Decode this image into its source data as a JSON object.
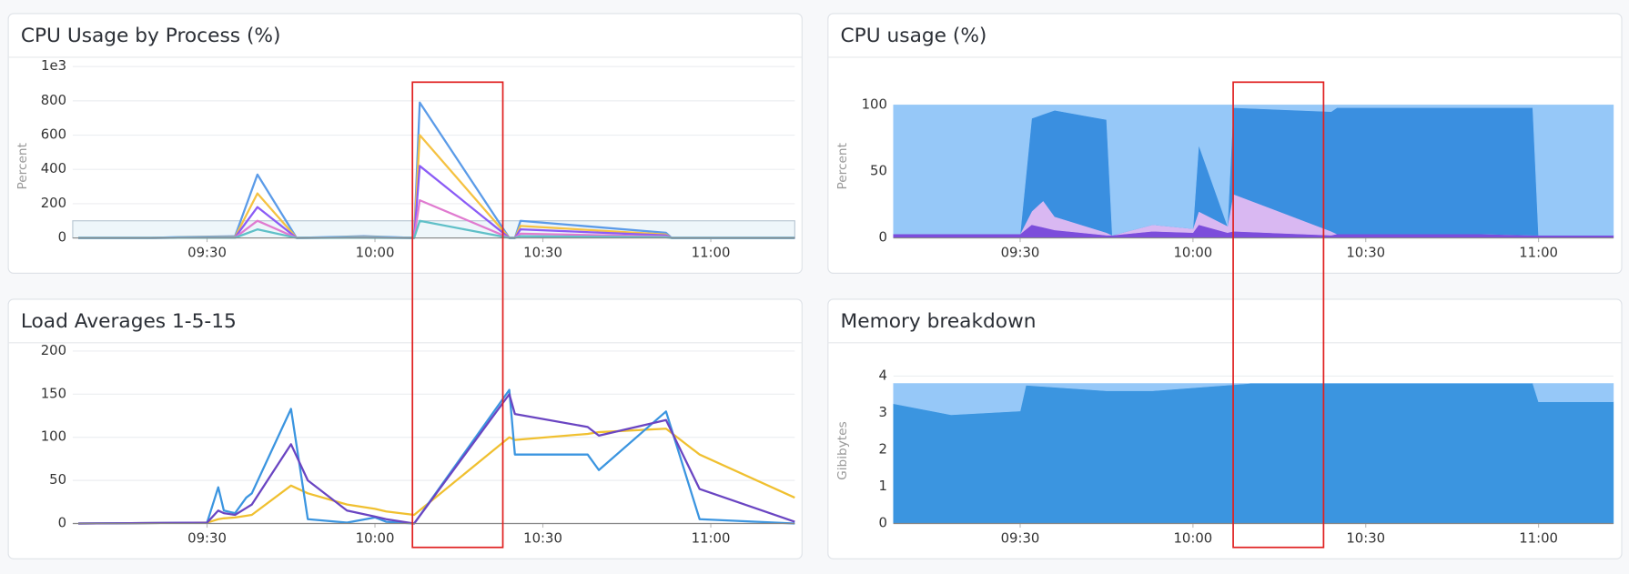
{
  "chart_data": [
    {
      "type": "line",
      "title": "CPU Usage by Process (%)",
      "y_label": "Percent",
      "xlim": [
        "09:06",
        "11:15"
      ],
      "xticks": [
        "09:30",
        "10:00",
        "10:30",
        "11:00"
      ],
      "ylim": [
        0,
        1000
      ],
      "yticks": [
        0,
        200,
        400,
        600,
        800,
        {
          "value": 1000,
          "label": "1e3"
        }
      ],
      "reference_line": 100,
      "grid": true,
      "x": [
        "09:07",
        "09:20",
        "09:25",
        "09:35",
        "09:39",
        "09:46",
        "09:58",
        "10:07",
        "10:08",
        "10:24",
        "10:25",
        "10:26",
        "10:52",
        "10:53",
        "11:15"
      ],
      "series": [
        {
          "color": "#5b9be8",
          "values": [
            0,
            0,
            5,
            10,
            370,
            0,
            10,
            0,
            790,
            0,
            0,
            100,
            30,
            0,
            0
          ]
        },
        {
          "color": "#f5c242",
          "values": [
            0,
            0,
            3,
            5,
            260,
            0,
            5,
            0,
            600,
            0,
            0,
            70,
            20,
            0,
            0
          ]
        },
        {
          "color": "#8b5cf6",
          "values": [
            0,
            0,
            2,
            3,
            180,
            0,
            3,
            0,
            420,
            0,
            0,
            50,
            15,
            0,
            0
          ]
        },
        {
          "color": "#e07bd0",
          "values": [
            0,
            0,
            1,
            2,
            100,
            0,
            2,
            0,
            220,
            0,
            0,
            25,
            8,
            0,
            0
          ]
        },
        {
          "color": "#60c0c8",
          "values": [
            0,
            0,
            1,
            1,
            50,
            0,
            1,
            0,
            100,
            0,
            0,
            10,
            4,
            0,
            0
          ]
        }
      ]
    },
    {
      "type": "area",
      "title": "CPU usage (%)",
      "y_label": "Percent",
      "xlim": [
        "09:08",
        "11:13"
      ],
      "xticks": [
        "09:30",
        "10:00",
        "10:30",
        "11:00"
      ],
      "ylim": [
        0,
        100
      ],
      "yticks": [
        0,
        50,
        100
      ],
      "grid": true,
      "x": [
        "09:08",
        "09:30",
        "09:32",
        "09:34",
        "09:36",
        "09:45",
        "09:46",
        "09:53",
        "10:00",
        "10:01",
        "10:06",
        "10:07",
        "10:24",
        "10:25",
        "10:50",
        "10:59",
        "11:00",
        "11:13"
      ],
      "series": [
        {
          "color": "#7c4ddb",
          "values": [
            3,
            3,
            10,
            8,
            6,
            2,
            2,
            5,
            4,
            10,
            4,
            5,
            2,
            3,
            3,
            2,
            2,
            2
          ]
        },
        {
          "color": "#d9b8f2",
          "values": [
            0,
            0,
            10,
            20,
            10,
            2,
            0,
            5,
            3,
            10,
            5,
            28,
            3,
            0,
            0,
            0,
            0,
            0
          ]
        },
        {
          "color": "#3a8fe0",
          "values": [
            0,
            0,
            70,
            65,
            80,
            85,
            0,
            0,
            0,
            50,
            0,
            65,
            90,
            95,
            95,
            96,
            0,
            0
          ]
        },
        {
          "color": "#96c8f8",
          "values": [
            97,
            97,
            10,
            7,
            4,
            11,
            98,
            90,
            93,
            30,
            91,
            2,
            5,
            2,
            2,
            2,
            98,
            98
          ]
        }
      ]
    },
    {
      "type": "line",
      "title": "Load Averages 1-5-15",
      "xlim": [
        "09:06",
        "11:15"
      ],
      "xticks": [
        "09:30",
        "10:00",
        "10:30",
        "11:00"
      ],
      "ylim": [
        0,
        200
      ],
      "yticks": [
        0,
        50,
        100,
        150,
        200
      ],
      "grid": true,
      "x": [
        "09:07",
        "09:30",
        "09:32",
        "09:33",
        "09:35",
        "09:37",
        "09:38",
        "09:45",
        "09:48",
        "09:55",
        "10:00",
        "10:02",
        "10:07",
        "10:24",
        "10:25",
        "10:38",
        "10:40",
        "10:52",
        "10:58",
        "11:15"
      ],
      "series": [
        {
          "color": "#f0c030",
          "values": [
            0,
            1,
            5,
            6,
            7,
            9,
            10,
            44,
            35,
            22,
            17,
            14,
            10,
            100,
            97,
            104,
            106,
            110,
            80,
            30
          ]
        },
        {
          "color": "#3b95e0",
          "values": [
            0,
            1,
            42,
            15,
            12,
            30,
            35,
            133,
            5,
            1,
            7,
            2,
            0,
            155,
            80,
            80,
            62,
            130,
            5,
            0
          ]
        },
        {
          "color": "#6a45c2",
          "values": [
            0,
            1,
            15,
            12,
            10,
            18,
            22,
            92,
            50,
            15,
            8,
            5,
            0,
            150,
            127,
            112,
            102,
            120,
            40,
            2
          ]
        }
      ]
    },
    {
      "type": "area",
      "title": "Memory breakdown",
      "y_label": "Gibibytes",
      "xlim": [
        "09:08",
        "11:13"
      ],
      "xticks": [
        "09:30",
        "10:00",
        "10:30",
        "11:00"
      ],
      "ylim": [
        0,
        4
      ],
      "yticks": [
        0,
        1,
        2,
        3,
        4
      ],
      "grid": true,
      "x": [
        "09:08",
        "09:18",
        "09:30",
        "09:31",
        "09:45",
        "09:53",
        "10:10",
        "10:59",
        "11:00",
        "11:13"
      ],
      "series": [
        {
          "color": "#3b95e0",
          "values": [
            3.25,
            2.95,
            3.05,
            3.75,
            3.6,
            3.6,
            3.8,
            3.8,
            3.3,
            3.3
          ]
        },
        {
          "color": "#96c8f8",
          "values": [
            0.55,
            0.85,
            0.75,
            0.05,
            0.2,
            0.2,
            0,
            0,
            0.5,
            0.5
          ]
        }
      ]
    }
  ]
}
